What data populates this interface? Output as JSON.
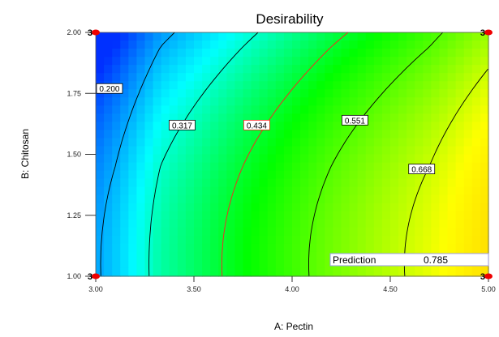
{
  "chart_data": {
    "type": "heatmap",
    "title": "Desirability",
    "xlabel": "A: Pectin",
    "ylabel": "B: Chitosan",
    "xlim": [
      3.0,
      5.0
    ],
    "ylim": [
      1.0,
      2.0
    ],
    "x_ticks": [
      "3.00",
      "3.50",
      "4.00",
      "4.50",
      "5.00"
    ],
    "y_ticks": [
      "1.00",
      "1.25",
      "1.50",
      "1.75",
      "2.00"
    ],
    "grid": false,
    "colormap": [
      "#0030ff",
      "#00ffff",
      "#00ff00",
      "#ffff00",
      "#ffd000"
    ],
    "contours": [
      {
        "level": 0.2,
        "label": "0.200",
        "color": "#000000"
      },
      {
        "level": 0.317,
        "label": "0.317",
        "color": "#000000"
      },
      {
        "level": 0.434,
        "label": "0.434",
        "color": "#ff2020"
      },
      {
        "level": 0.551,
        "label": "0.551",
        "color": "#000000"
      },
      {
        "level": 0.668,
        "label": "0.668",
        "color": "#000000"
      }
    ],
    "design_points": [
      {
        "x": 3.0,
        "y": 2.0,
        "label": "3"
      },
      {
        "x": 5.0,
        "y": 2.0,
        "label": "3"
      },
      {
        "x": 3.0,
        "y": 1.0,
        "label": "3"
      },
      {
        "x": 5.0,
        "y": 1.0,
        "label": "3"
      }
    ],
    "prediction": {
      "label": "Prediction",
      "value": "0.785",
      "x": 5.0,
      "y": 1.0
    }
  }
}
